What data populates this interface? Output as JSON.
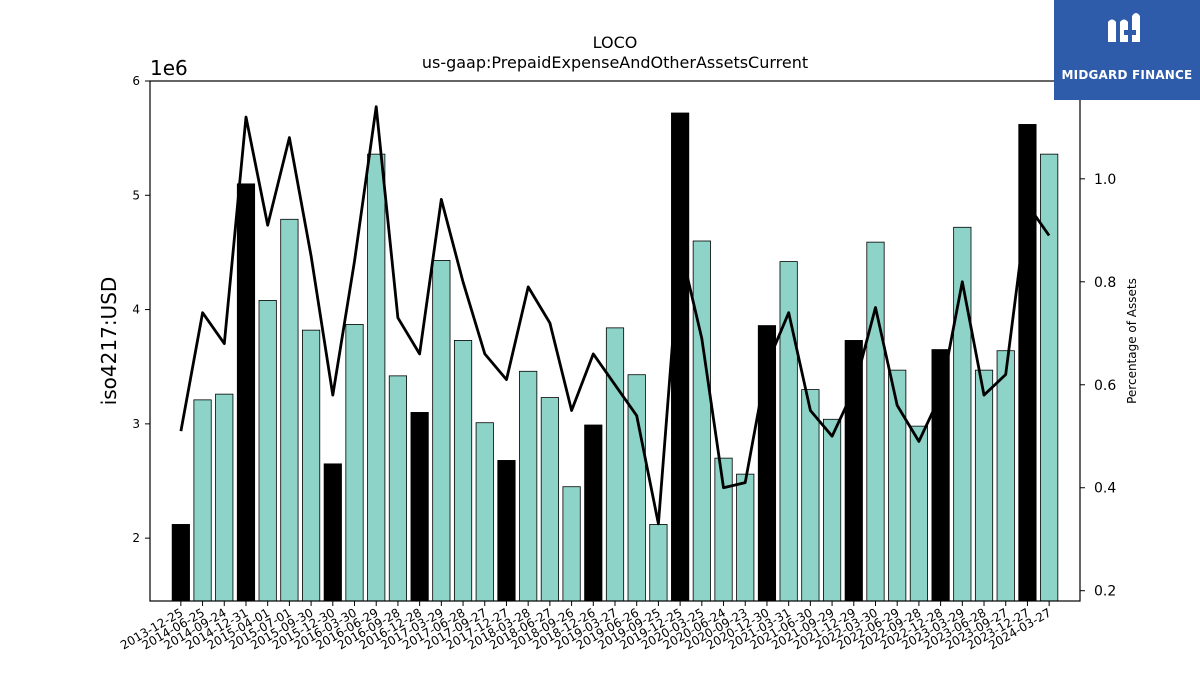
{
  "logo": {
    "text": "MIDGARD FINANCE",
    "background": "#2e5baa"
  },
  "chart_data": {
    "type": "bar",
    "title": "LOCO",
    "subtitle": "us-gaap:PrepaidExpenseAndOtherAssetsCurrent",
    "ylabel": "iso4217:USD",
    "y2label": "Percentage of Assets",
    "y_multiplier_label": "1e6",
    "ylim": [
      1.45,
      6.0
    ],
    "y2lim": [
      0.18,
      1.19
    ],
    "y_ticks": [
      2,
      3,
      4,
      5,
      6
    ],
    "y2_ticks": [
      0.2,
      0.4,
      0.6,
      0.8,
      1.0
    ],
    "colors": {
      "bar": "#8dd3c7",
      "highlight_bar": "#000000",
      "line": "#000000"
    },
    "categories": [
      "2013-12-25",
      "2014-06-25",
      "2014-09-24",
      "2014-12-31",
      "2015-04-01",
      "2015-07-01",
      "2015-09-30",
      "2015-12-30",
      "2016-03-30",
      "2016-06-29",
      "2016-09-28",
      "2016-12-28",
      "2017-03-29",
      "2017-06-28",
      "2017-09-27",
      "2017-12-27",
      "2018-03-28",
      "2018-06-27",
      "2018-09-26",
      "2018-12-26",
      "2019-03-27",
      "2019-06-26",
      "2019-09-25",
      "2019-12-25",
      "2020-03-25",
      "2020-06-24",
      "2020-09-23",
      "2020-12-30",
      "2021-03-31",
      "2021-06-30",
      "2021-09-29",
      "2021-12-29",
      "2022-03-30",
      "2022-06-29",
      "2022-09-28",
      "2022-12-28",
      "2023-03-29",
      "2023-06-28",
      "2023-09-27",
      "2023-12-27",
      "2024-03-27"
    ],
    "series": [
      {
        "kind": "bar",
        "values": [
          2.12,
          3.21,
          3.26,
          5.1,
          4.08,
          4.79,
          3.82,
          2.65,
          3.87,
          5.36,
          3.42,
          3.1,
          4.43,
          3.73,
          3.01,
          2.68,
          3.46,
          3.23,
          2.45,
          2.99,
          3.84,
          3.43,
          2.12,
          5.72,
          4.6,
          2.7,
          2.56,
          3.86,
          4.42,
          3.3,
          3.04,
          3.73,
          4.59,
          3.47,
          2.98,
          3.65,
          4.72,
          3.47,
          3.64,
          5.62,
          5.36
        ],
        "highlighted": [
          true,
          false,
          false,
          true,
          false,
          false,
          false,
          true,
          false,
          false,
          false,
          true,
          false,
          false,
          false,
          true,
          false,
          false,
          false,
          true,
          false,
          false,
          false,
          true,
          false,
          false,
          false,
          true,
          false,
          false,
          false,
          true,
          false,
          false,
          false,
          true,
          false,
          false,
          false,
          true,
          false
        ]
      },
      {
        "kind": "line",
        "axis": "right",
        "values": [
          0.51,
          0.74,
          0.68,
          1.12,
          0.91,
          1.08,
          0.85,
          0.58,
          0.84,
          1.14,
          0.73,
          0.66,
          0.96,
          0.8,
          0.66,
          0.61,
          0.79,
          0.72,
          0.55,
          0.66,
          0.6,
          0.54,
          0.33,
          0.87,
          0.69,
          0.4,
          0.41,
          0.64,
          0.74,
          0.55,
          0.5,
          0.59,
          0.75,
          0.56,
          0.49,
          0.58,
          0.8,
          0.58,
          0.62,
          0.95,
          0.89
        ]
      }
    ]
  }
}
